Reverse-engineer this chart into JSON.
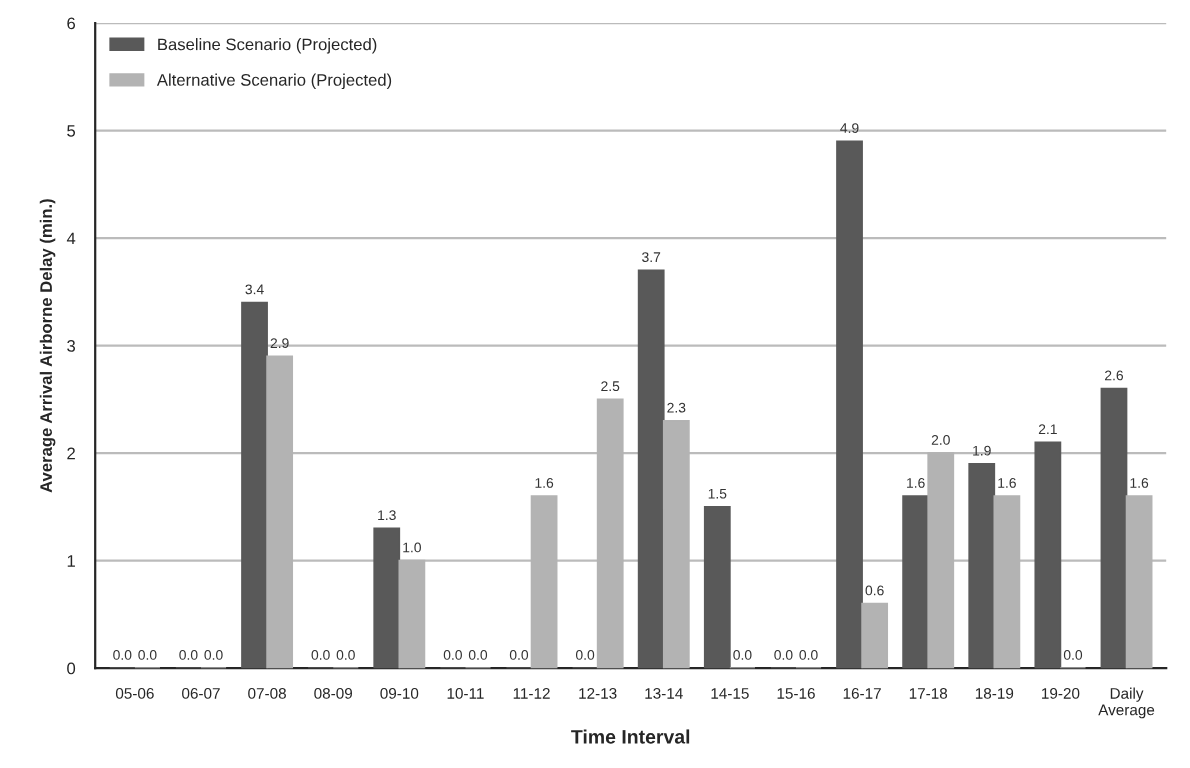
{
  "chart_data": {
    "type": "bar",
    "xlabel": "Time Interval",
    "ylabel": "Average Arrival Airborne Delay (min.)",
    "categories": [
      "05-06",
      "06-07",
      "07-08",
      "08-09",
      "09-10",
      "10-11",
      "11-12",
      "12-13",
      "13-14",
      "14-15",
      "15-16",
      "16-17",
      "17-18",
      "18-19",
      "19-20",
      "Daily Average"
    ],
    "series": [
      {
        "name": "Baseline Scenario (Projected)",
        "color": "#595959",
        "values": [
          0.0,
          0.0,
          3.4,
          0.0,
          1.3,
          0.0,
          0.0,
          0.0,
          3.7,
          1.5,
          0.0,
          4.9,
          1.6,
          1.9,
          2.1,
          2.6
        ],
        "value_labels": [
          "0.0",
          "0.0",
          "3.4",
          "0.0",
          "1.3",
          "0.0",
          "0.0",
          "0.0",
          "3.7",
          "1.5",
          "0.0",
          "4.9",
          "1.6",
          "1.9",
          "2.1",
          "2.6"
        ]
      },
      {
        "name": "Alternative Scenario (Projected)",
        "color": "#b3b3b3",
        "values": [
          0.0,
          0.0,
          2.9,
          0.0,
          1.0,
          0.0,
          1.6,
          2.5,
          2.3,
          0.0,
          0.0,
          0.6,
          2.0,
          1.6,
          0.0,
          1.6
        ],
        "value_labels": [
          "0.0",
          "0.0",
          "2.9",
          "0.0",
          "1.0",
          "0.0",
          "1.6",
          "2.5",
          "2.3",
          "0.0",
          "0.0",
          "0.6",
          "2.0",
          "1.6",
          "0.0",
          "1.6"
        ]
      }
    ],
    "ylim": [
      0,
      6
    ],
    "yticks": [
      0,
      1,
      2,
      3,
      4,
      5,
      6
    ],
    "grid": "y",
    "legend": "top left"
  }
}
